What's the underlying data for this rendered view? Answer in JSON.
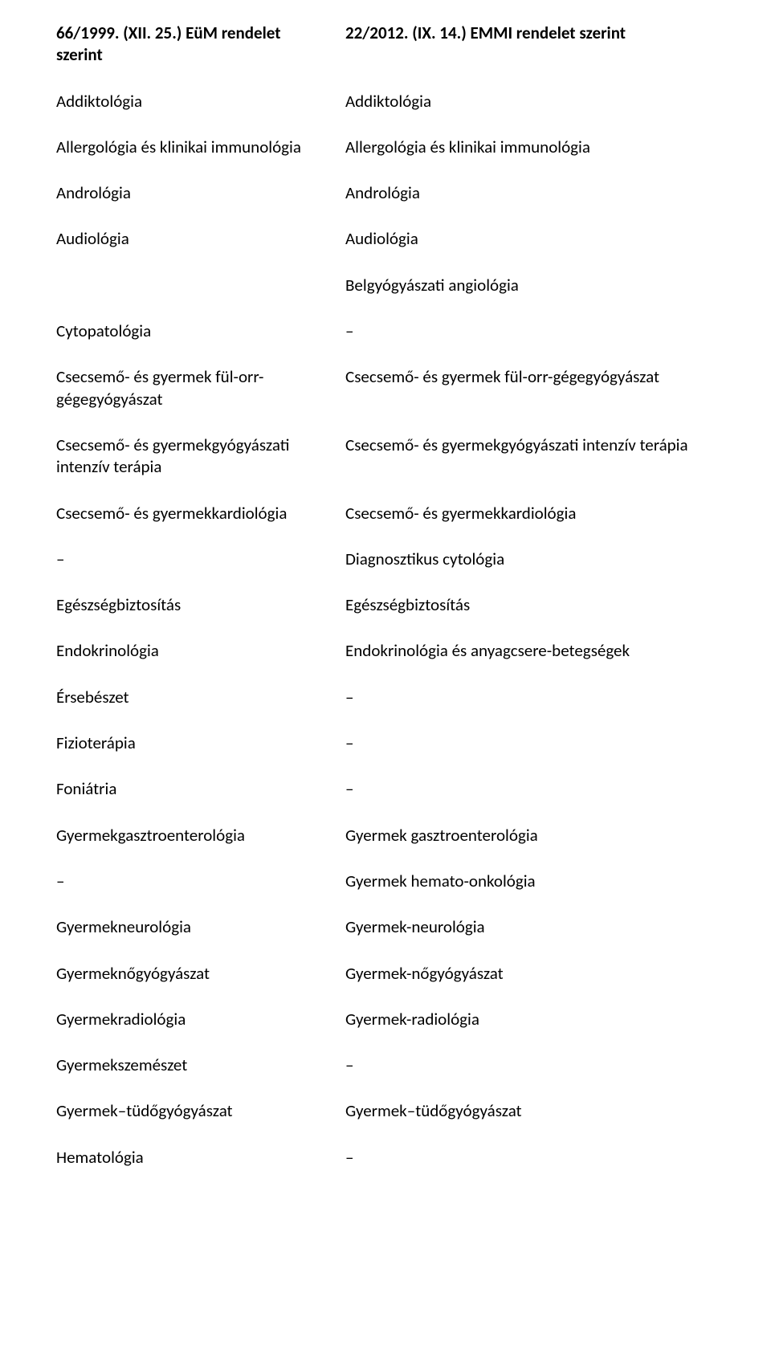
{
  "header": {
    "left": "66/1999. (XII. 25.) EüM rendelet szerint",
    "right": "22/2012. (IX. 14.) EMMI rendelet szerint"
  },
  "rows": [
    {
      "left": "Addiktológia",
      "right": "Addiktológia"
    },
    {
      "left": "Allergológia és klinikai immunológia",
      "right": "Allergológia és klinikai immunológia"
    },
    {
      "left": "Andrológia",
      "right": "Andrológia"
    },
    {
      "left": "Audiológia",
      "right": "Audiológia"
    },
    {
      "left": "",
      "right": "Belgyógyászati angiológia"
    },
    {
      "left": "Cytopatológia",
      "right": "–"
    },
    {
      "left": "Csecsemő- és gyermek fül-orr-gégegyógyászat",
      "right": "Csecsemő- és gyermek fül-orr-gégegyógyászat"
    },
    {
      "left": "Csecsemő- és gyermekgyógyászati intenzív terápia",
      "right": "Csecsemő- és gyermekgyógyászati intenzív terápia"
    },
    {
      "left": "Csecsemő- és gyermekkardiológia",
      "right": "Csecsemő- és gyermekkardiológia"
    },
    {
      "left": "–",
      "right": "Diagnosztikus cytológia"
    },
    {
      "left": "Egészségbiztosítás",
      "right": "Egészségbiztosítás"
    },
    {
      "left": "Endokrinológia",
      "right": "Endokrinológia és anyagcsere-betegségek"
    },
    {
      "left": "Érsebészet",
      "right": "–"
    },
    {
      "left": "Fizioterápia",
      "right": "–"
    },
    {
      "left": "Foniátria",
      "right": "–"
    },
    {
      "left": "Gyermekgasztroenterológia",
      "right": "Gyermek gasztroenterológia"
    },
    {
      "left": "–",
      "right": "Gyermek hemato-onkológia"
    },
    {
      "left": "Gyermekneurológia",
      "right": "Gyermek-neurológia"
    },
    {
      "left": "Gyermeknőgyógyászat",
      "right": "Gyermek-nőgyógyászat"
    },
    {
      "left": "Gyermekradiológia",
      "right": "Gyermek-radiológia"
    },
    {
      "left": "Gyermekszemészet",
      "right": "–"
    },
    {
      "left": "Gyermek–tüdőgyógyászat",
      "right": "Gyermek–tüdőgyógyászat"
    },
    {
      "left": "Hematológia",
      "right": "–"
    }
  ]
}
